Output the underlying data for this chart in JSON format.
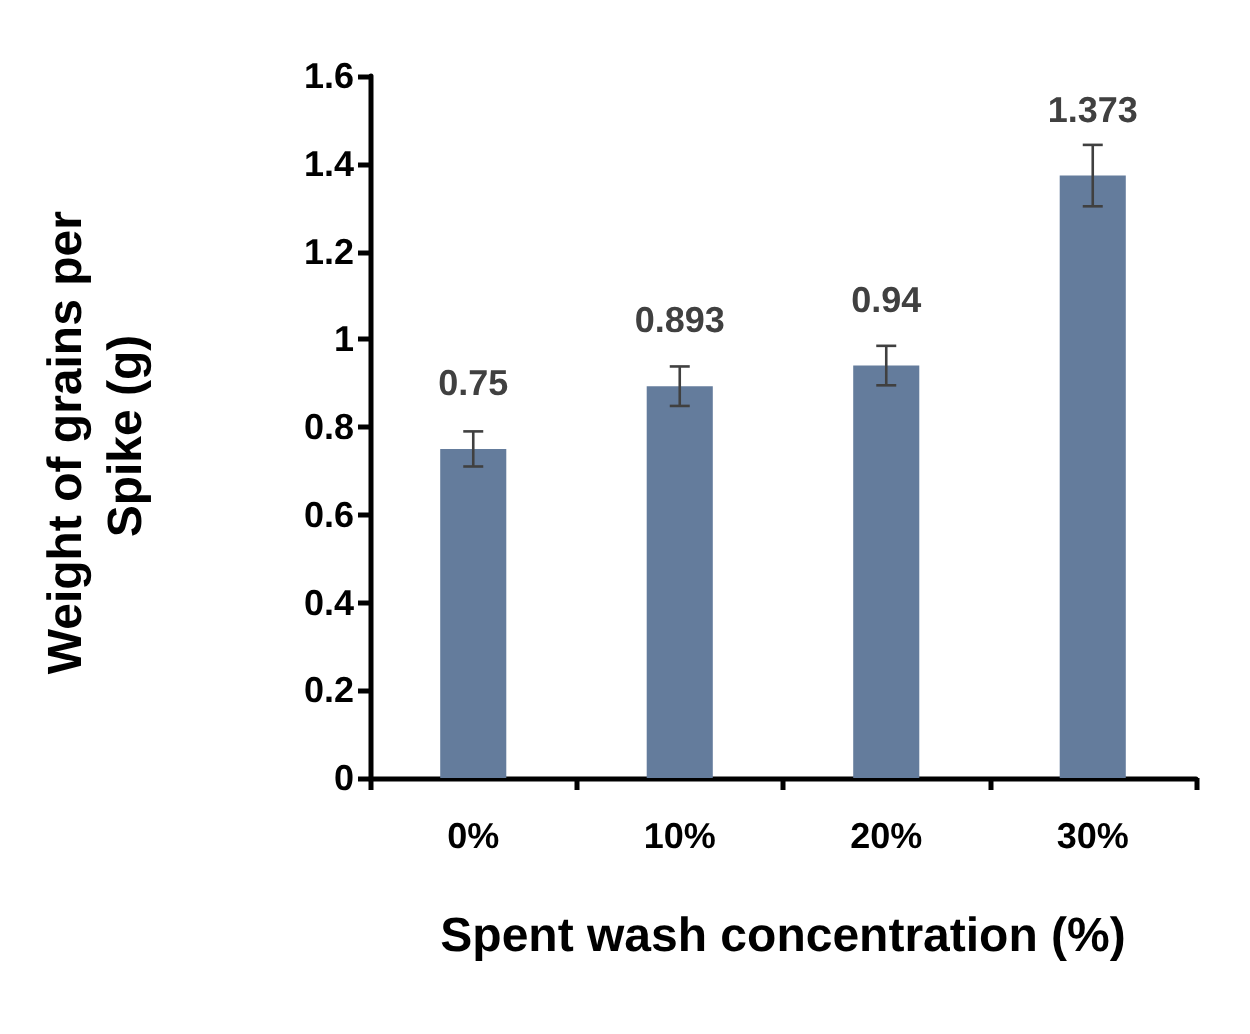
{
  "chart_data": {
    "type": "bar",
    "xlabel": "Spent wash concentration (%)",
    "ylabel": "Weight of grains per Spike (g)",
    "categories": [
      "0%",
      "10%",
      "20%",
      "30%"
    ],
    "values": [
      0.75,
      0.893,
      0.94,
      1.373
    ],
    "errors": [
      0.04,
      0.045,
      0.045,
      0.07
    ],
    "color": "#647c9c",
    "data_labels": true,
    "grid": false,
    "ylim": [
      0,
      1.6
    ],
    "yticks": [
      0,
      0.2,
      0.4,
      0.6,
      0.8,
      1,
      1.2,
      1.4,
      1.6
    ]
  }
}
